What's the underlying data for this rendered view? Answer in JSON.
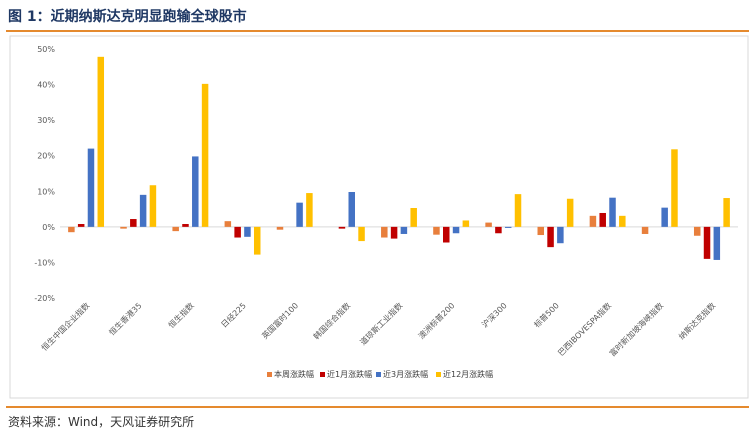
{
  "figure": {
    "title": "图 1：近期纳斯达克明显跑输全球股市",
    "source": "资料来源：Wind，天风证券研究所"
  },
  "chart_data": {
    "type": "bar",
    "categories": [
      "恒生中国企业指数",
      "恒生香港35",
      "恒生指数",
      "日经225",
      "英国富时100",
      "韩国综合指数",
      "道琼斯工业指数",
      "澳洲标普200",
      "沪深300",
      "标普500",
      "巴西IBOVESPA指数",
      "富时新加坡海峡指数",
      "纳斯达克指数"
    ],
    "series": [
      {
        "name": "本周涨跌幅",
        "color": "#e87f3c",
        "values": [
          -1.5,
          -0.5,
          -1.2,
          1.6,
          -0.8,
          0.0,
          -3.0,
          -2.2,
          1.2,
          -2.3,
          3.1,
          -2.0,
          -2.5
        ]
      },
      {
        "name": "近1月涨跌幅",
        "color": "#c00000",
        "values": [
          0.8,
          2.2,
          0.8,
          -3.0,
          0.0,
          -0.5,
          -3.3,
          -4.4,
          -1.8,
          -5.7,
          3.9,
          0.0,
          -9.0
        ]
      },
      {
        "name": "近3月涨跌幅",
        "color": "#4472c4",
        "values": [
          22.0,
          9.0,
          19.8,
          -2.8,
          6.8,
          9.8,
          -2.0,
          -1.8,
          -0.3,
          -4.6,
          8.2,
          5.4,
          -9.3
        ]
      },
      {
        "name": "近12月涨跌幅",
        "color": "#ffc000",
        "values": [
          47.8,
          11.7,
          40.2,
          -7.8,
          9.5,
          -4.0,
          5.3,
          1.8,
          9.2,
          7.9,
          3.1,
          21.8,
          8.1
        ]
      }
    ],
    "ylim": [
      -20,
      50
    ],
    "yticks": [
      "-20%",
      "-10%",
      "0%",
      "10%",
      "20%",
      "30%",
      "40%",
      "50%"
    ],
    "grid": false,
    "legend_position": "bottom"
  }
}
